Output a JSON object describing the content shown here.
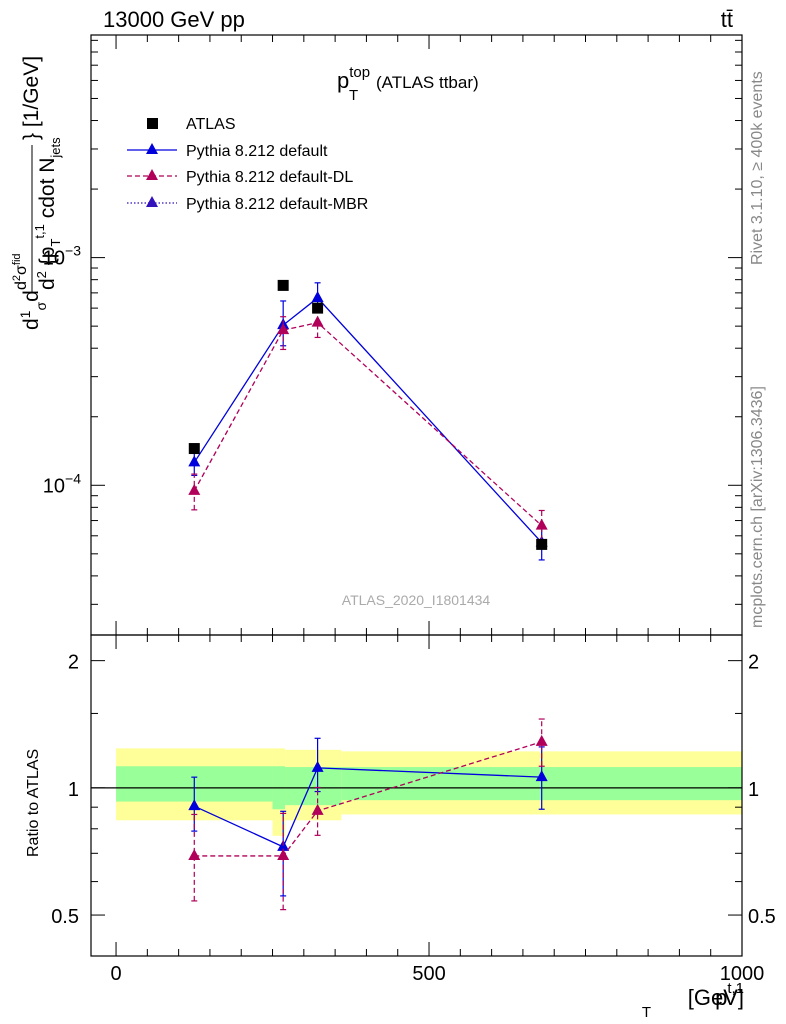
{
  "header": {
    "left": "13000 GeV pp",
    "right": "tt̄"
  },
  "side_labels": {
    "rivet": "Rivet 3.1.10, ≥ 400k events",
    "mcplots": "mcplots.cern.ch [arXiv:1306.3436]"
  },
  "analysis_id": "ATLAS_2020_I1801434",
  "chart_data": [
    {
      "type": "scatter",
      "panel": "main",
      "title": {
        "main": "p",
        "sup": "top",
        "sub": "T",
        "suffix": "(ATLAS ttbar)"
      },
      "ylabel": "d1/σ dd²σ^fid / d²{p_T^t,1 cdot N_jets} [1/GeV]",
      "yscale": "log",
      "ylim": [
        2.2e-05,
        0.0095
      ],
      "yticks": [
        {
          "value": 0.0001,
          "label": "10",
          "exp": "−4"
        },
        {
          "value": 0.001,
          "label": "10",
          "exp": "−3"
        }
      ],
      "xlim": [
        -40,
        1000
      ],
      "series": [
        {
          "name": "ATLAS",
          "color": "#000000",
          "marker": "square",
          "line": "none",
          "x": [
            125,
            267,
            322,
            680
          ],
          "y": [
            0.000145,
            0.000755,
            0.0006,
            5.5e-05
          ]
        },
        {
          "name": "Pythia 8.212 default",
          "color": "#0000dd",
          "marker": "triangle",
          "line": "solid",
          "x": [
            125,
            267,
            322,
            680
          ],
          "y": [
            0.000126,
            0.000505,
            0.000665,
            5.6e-05
          ],
          "yerr_lo": [
            1.55e-05,
            9.5e-05,
            9e-05,
            9e-06
          ],
          "yerr_hi": [
            1.95e-05,
            0.00014,
            0.00011,
            1.05e-05
          ]
        },
        {
          "name": "Pythia 8.212 default-DL",
          "color": "#b0005a",
          "marker": "triangle",
          "line": "dashed",
          "x": [
            125,
            267,
            322,
            680
          ],
          "y": [
            9.45e-05,
            0.00048,
            0.000518,
            6.65e-05
          ],
          "yerr_lo": [
            1.65e-05,
            8.5e-05,
            7.2e-05,
            9e-06
          ],
          "yerr_hi": [
            1.75e-05,
            7e-05,
            6.2e-05,
            1.1e-05
          ]
        },
        {
          "name": "Pythia 8.212 default-MBR",
          "color": "#3311bb",
          "marker": "triangle",
          "line": "dotted",
          "x": [],
          "y": []
        }
      ]
    },
    {
      "type": "scatter",
      "panel": "ratio",
      "ylabel": "Ratio to ATLAS",
      "xlabel": "p_T^t,1 [GeV]",
      "xlim": [
        -40,
        1000
      ],
      "ylim": [
        0.4,
        2.3
      ],
      "yticks": [
        0.5,
        1,
        2
      ],
      "ytick_labels": [
        "0.5",
        "1",
        "2"
      ],
      "xticks": [
        0,
        500,
        1000
      ],
      "xtick_labels": [
        "0",
        "500",
        "1000"
      ],
      "reference_line": 1,
      "bands": [
        {
          "x0": 0,
          "x1": 250,
          "yellow": [
            0.838,
            1.24
          ],
          "green": [
            0.928,
            1.125
          ]
        },
        {
          "x0": 250,
          "x1": 270,
          "yellow": [
            0.77,
            1.24
          ],
          "green": [
            0.89,
            1.125
          ]
        },
        {
          "x0": 270,
          "x1": 360,
          "yellow": [
            0.838,
            1.23
          ],
          "green": [
            0.91,
            1.12
          ]
        },
        {
          "x0": 360,
          "x1": 1000,
          "yellow": [
            0.865,
            1.22
          ],
          "green": [
            0.935,
            1.12
          ]
        }
      ],
      "series": [
        {
          "name": "Pythia 8.212 default",
          "color": "#0000dd",
          "line": "solid",
          "x": [
            125,
            267,
            322,
            680
          ],
          "y": [
            0.905,
            0.725,
            1.115,
            1.06
          ],
          "yerr_lo": [
            0.115,
            0.17,
            0.135,
            0.17
          ],
          "yerr_hi": [
            0.155,
            0.155,
            0.195,
            0.19
          ]
        },
        {
          "name": "Pythia 8.212 default-DL",
          "color": "#b0005a",
          "line": "dashed",
          "x": [
            125,
            267,
            322,
            680
          ],
          "y": [
            0.69,
            0.69,
            0.882,
            1.285
          ],
          "yerr_lo": [
            0.15,
            0.175,
            0.11,
            0.16
          ],
          "yerr_hi": [
            0.175,
            0.18,
            0.12,
            0.17
          ]
        }
      ]
    }
  ]
}
